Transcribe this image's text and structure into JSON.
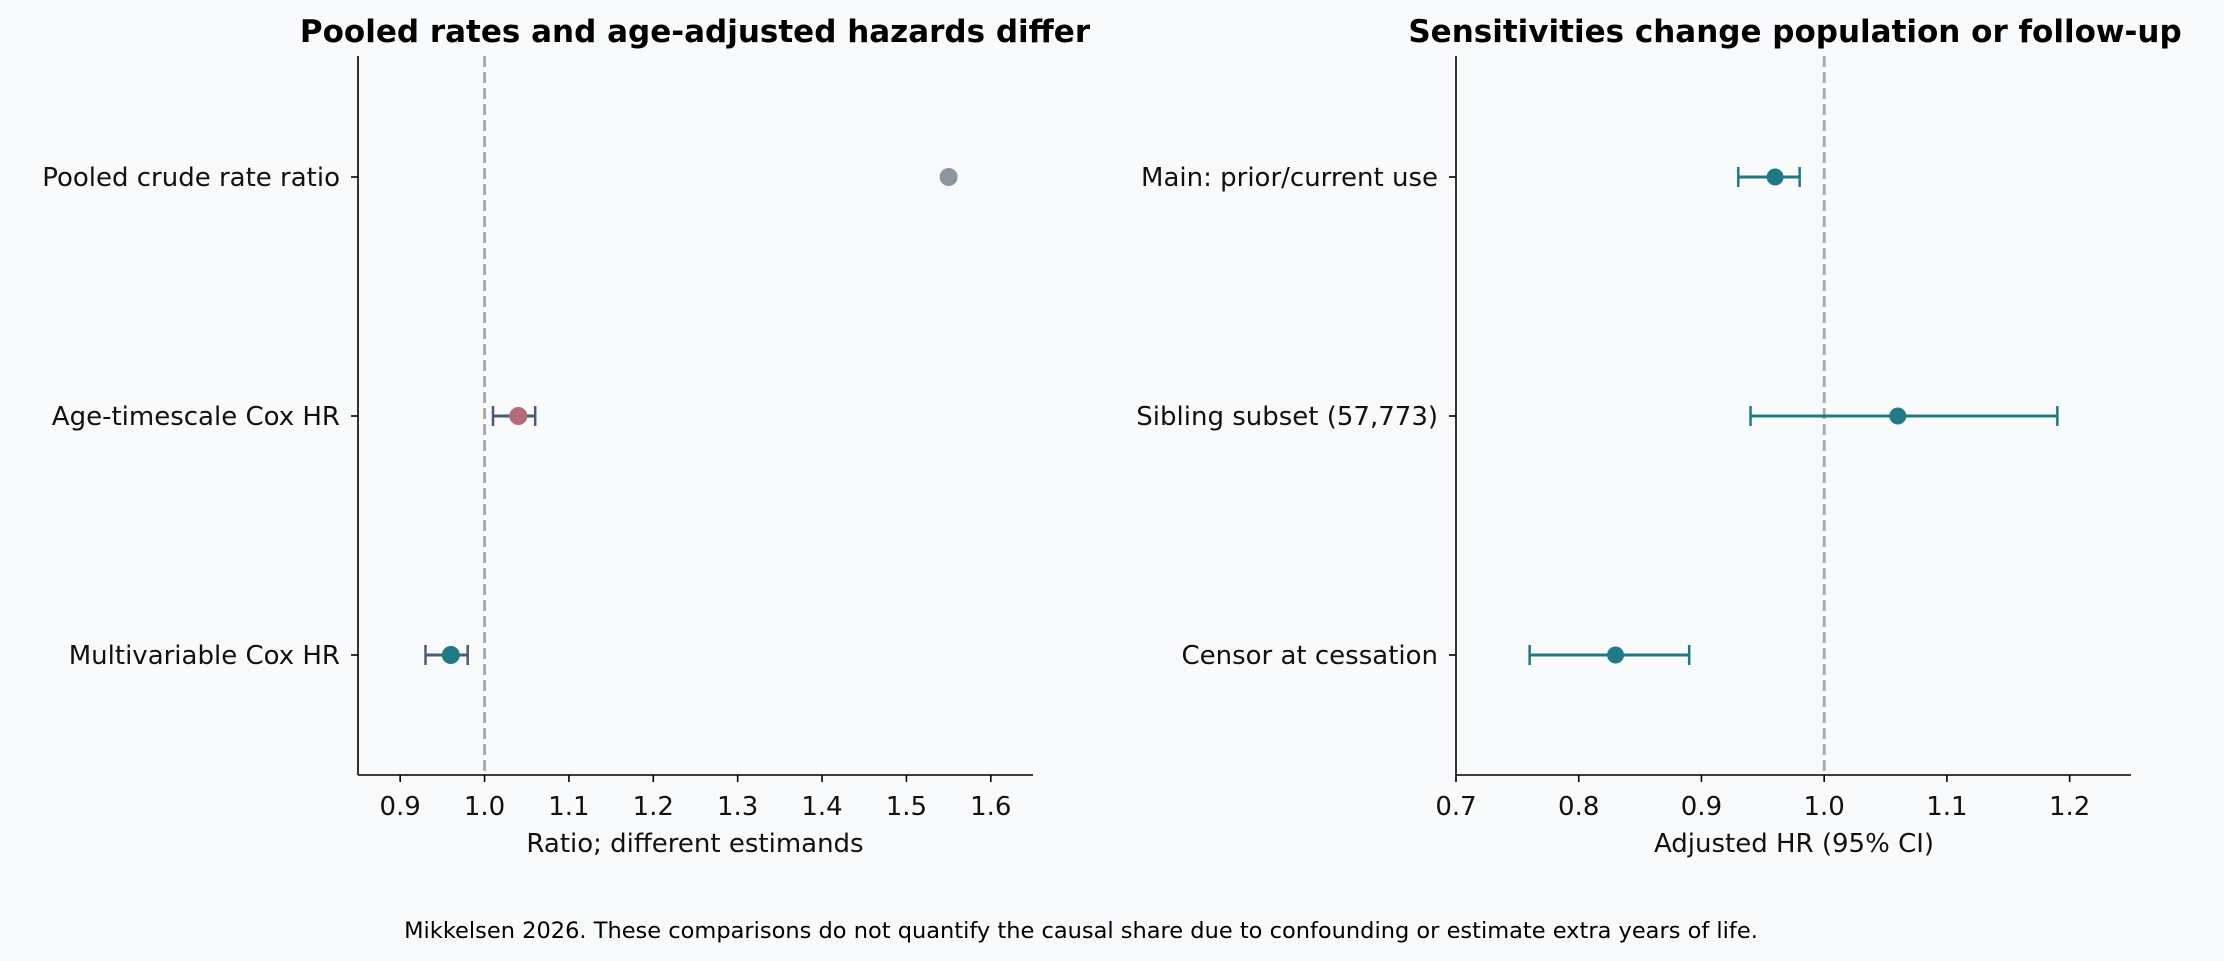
{
  "chart_data": [
    {
      "type": "forest",
      "title": "Pooled rates and age-adjusted hazards differ",
      "xlabel": "Ratio; different estimands",
      "ylabel": "",
      "xlim": [
        0.85,
        1.65
      ],
      "xticks": [
        "0.9",
        "1.0",
        "1.1",
        "1.2",
        "1.3",
        "1.4",
        "1.5",
        "1.6"
      ],
      "reference_line": 1.0,
      "grid": false,
      "rows": [
        {
          "label": "Pooled crude rate ratio",
          "estimate": 1.55,
          "ci_low": null,
          "ci_high": null,
          "color": "#8c96a3"
        },
        {
          "label": "Age-timescale Cox HR",
          "estimate": 1.04,
          "ci_low": 1.01,
          "ci_high": 1.06,
          "color": "#b56a7a"
        },
        {
          "label": "Multivariable Cox HR",
          "estimate": 0.96,
          "ci_low": 0.93,
          "ci_high": 0.98,
          "color": "#1f7a85"
        }
      ],
      "errorbar_color": "#4a5d75"
    },
    {
      "type": "forest",
      "title": "Sensitivities change population or follow-up",
      "xlabel": "Adjusted HR (95% CI)",
      "ylabel": "",
      "xlim": [
        0.7,
        1.25
      ],
      "xticks": [
        "0.7",
        "0.8",
        "0.9",
        "1.0",
        "1.1",
        "1.2"
      ],
      "reference_line": 1.0,
      "grid": false,
      "rows": [
        {
          "label": "Main: prior/current use",
          "estimate": 0.96,
          "ci_low": 0.93,
          "ci_high": 0.98,
          "color": "#1f7a85"
        },
        {
          "label": "Sibling subset (57,773)",
          "estimate": 1.06,
          "ci_low": 0.94,
          "ci_high": 1.19,
          "color": "#1f7a85"
        },
        {
          "label": "Censor at cessation",
          "estimate": 0.83,
          "ci_low": 0.76,
          "ci_high": 0.89,
          "color": "#1f7a85"
        }
      ],
      "errorbar_color": "#1f7a85"
    }
  ],
  "footnote": "Mikkelsen 2026. These comparisons do not quantify the causal share due to confounding or estimate extra years of life.",
  "colors": {
    "background": "#f8fafc",
    "reference_line": "#a9acb0",
    "axis": "#000000"
  }
}
